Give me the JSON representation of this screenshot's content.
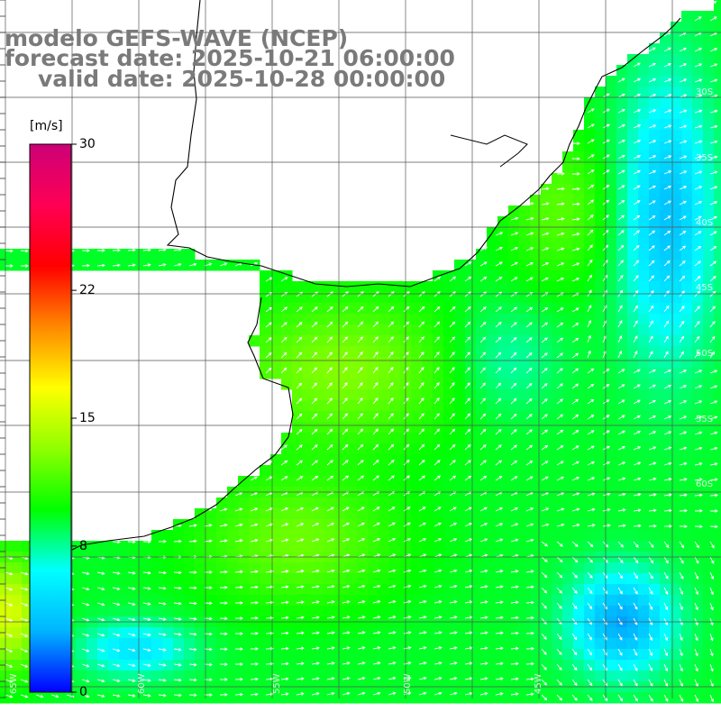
{
  "title": {
    "line1": "modelo GEFS-WAVE (NCEP)",
    "line2": "forecast date: 2025-10-21 06:00:00",
    "line3": "valid date: 2025-10-28 00:00:00"
  },
  "colorbar": {
    "unit": "[m/s]",
    "min": 0,
    "max": 30,
    "ticks": [
      {
        "label": "30",
        "value": 30
      },
      {
        "label": "22",
        "value": 22
      },
      {
        "label": "15",
        "value": 15
      },
      {
        "label": "8",
        "value": 8
      },
      {
        "label": "0",
        "value": 0
      }
    ],
    "colors": [
      "#0000ff",
      "#00b4ff",
      "#00ffff",
      "#00ff00",
      "#90ff00",
      "#ffff00",
      "#ff8800",
      "#ff0000",
      "#ff0055",
      "#cc0077"
    ]
  },
  "map": {
    "longitude_labels": [
      "65W",
      "60W",
      "55W",
      "50W",
      "45W"
    ],
    "latitude_labels": [
      "30S",
      "35S",
      "40S",
      "45S",
      "50S",
      "55S",
      "60S"
    ],
    "field": "wind speed",
    "wind_direction_general": "west to east"
  }
}
